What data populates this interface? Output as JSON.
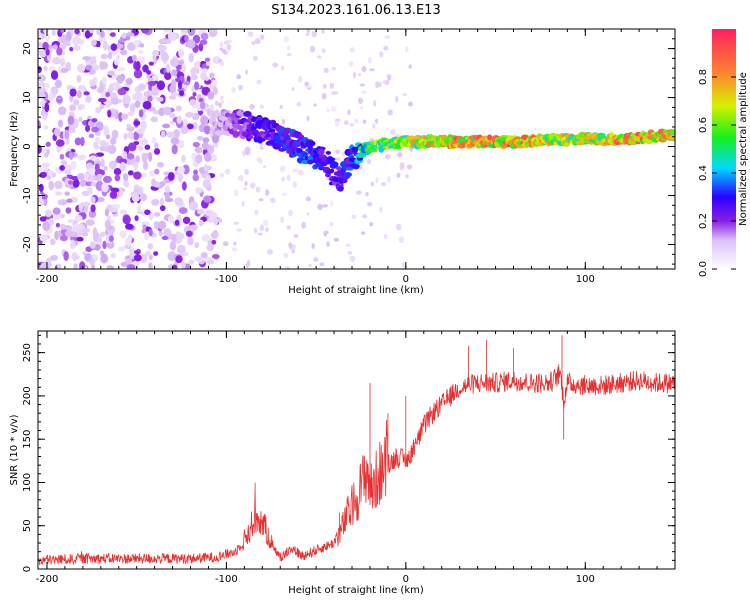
{
  "title": "S134.2023.161.06.13.E13",
  "chart_data": [
    {
      "type": "heatmap",
      "xlabel": "Height of straight line (km)",
      "ylabel": "Frequency (Hz)",
      "xlim": [
        -205,
        150
      ],
      "ylim": [
        -25,
        24
      ],
      "xticks": [
        -200,
        -100,
        0,
        100
      ],
      "xtick_labels": [
        "-200",
        "-100",
        "0",
        "100"
      ],
      "yticks": [
        -20,
        -10,
        0,
        10,
        20
      ],
      "ytick_labels": [
        "-20",
        "-10",
        "0",
        "10",
        "20"
      ],
      "colorbar": {
        "label": "Normalized spectral amplitude",
        "range": [
          0,
          1
        ],
        "ticks": [
          0.0,
          0.2,
          0.4,
          0.6,
          0.8
        ],
        "tick_labels": [
          "0.0",
          "0.2",
          "0.4",
          "0.6",
          "0.8"
        ],
        "colors": [
          "#ffffff",
          "#dcc0f7",
          "#8a1ee6",
          "#2a00ff",
          "#00d8ff",
          "#18f018",
          "#d8f000",
          "#ff2040"
        ]
      },
      "ridge": [
        {
          "x": -105,
          "f": 5,
          "a": 0.15
        },
        {
          "x": -95,
          "f": 5,
          "a": 0.2
        },
        {
          "x": -85,
          "f": 4,
          "a": 0.28
        },
        {
          "x": -75,
          "f": 3,
          "a": 0.3
        },
        {
          "x": -65,
          "f": 1,
          "a": 0.32
        },
        {
          "x": -55,
          "f": -1,
          "a": 0.35
        },
        {
          "x": -45,
          "f": -3,
          "a": 0.3
        },
        {
          "x": -37,
          "f": -7,
          "a": 0.3
        },
        {
          "x": -30,
          "f": -2,
          "a": 0.35
        },
        {
          "x": -20,
          "f": 0,
          "a": 0.6
        },
        {
          "x": 0,
          "f": 1,
          "a": 0.7
        },
        {
          "x": 25,
          "f": 1,
          "a": 0.85
        },
        {
          "x": 60,
          "f": 1,
          "a": 0.88
        },
        {
          "x": 100,
          "f": 1.5,
          "a": 0.7
        },
        {
          "x": 125,
          "f": 1.5,
          "a": 0.9
        },
        {
          "x": 150,
          "f": 2.5,
          "a": 0.8
        }
      ]
    },
    {
      "type": "line",
      "xlabel": "Height of straight line (km)",
      "ylabel": "SNR (10 * v/v)",
      "xlim": [
        -205,
        150
      ],
      "ylim": [
        0,
        275
      ],
      "xticks": [
        -200,
        -100,
        0,
        100
      ],
      "xtick_labels": [
        "-200",
        "-100",
        "0",
        "100"
      ],
      "yticks": [
        0,
        50,
        100,
        150,
        200,
        250
      ],
      "ytick_labels": [
        "0",
        "50",
        "100",
        "150",
        "200",
        "250"
      ],
      "color": "#e83030",
      "series": [
        {
          "name": "SNR",
          "x": [
            -205,
            -180,
            -150,
            -120,
            -105,
            -95,
            -88,
            -84,
            -80,
            -76,
            -70,
            -64,
            -58,
            -52,
            -46,
            -40,
            -36,
            -32,
            -28,
            -24,
            -22,
            -19,
            -15,
            -10,
            -5,
            0,
            5,
            10,
            15,
            20,
            25,
            30,
            40,
            50,
            60,
            70,
            80,
            86,
            88,
            90,
            100,
            110,
            120,
            130,
            140,
            150
          ],
          "y": [
            10,
            12,
            12,
            12,
            14,
            20,
            40,
            60,
            55,
            35,
            12,
            25,
            15,
            20,
            25,
            30,
            45,
            65,
            80,
            100,
            115,
            90,
            110,
            120,
            130,
            125,
            140,
            165,
            180,
            190,
            200,
            210,
            215,
            215,
            218,
            215,
            215,
            225,
            195,
            215,
            212,
            212,
            215,
            218,
            215,
            215
          ],
          "peaks": [
            {
              "x": -84,
              "y": 100
            },
            {
              "x": -37,
              "y": 65
            },
            {
              "x": -20,
              "y": 215
            },
            {
              "x": -10,
              "y": 180
            },
            {
              "x": 0,
              "y": 200
            },
            {
              "x": 35,
              "y": 258
            },
            {
              "x": 45,
              "y": 265
            },
            {
              "x": 60,
              "y": 255
            },
            {
              "x": 87,
              "y": 270
            },
            {
              "x": 88,
              "y": 150
            }
          ]
        }
      ]
    }
  ]
}
